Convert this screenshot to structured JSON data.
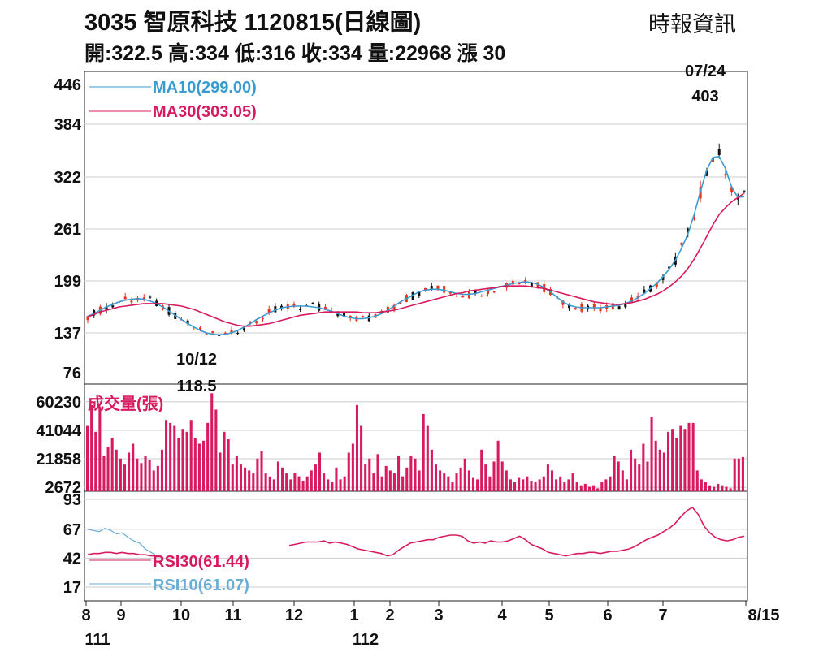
{
  "header": {
    "title": "3035  智原科技 1120815(日線圖)",
    "source": "時報資訊",
    "quote": "開:322.5 高:334 低:316 收:334 量:22968 漲 30"
  },
  "colors": {
    "up": "#e8341c",
    "down": "#111111",
    "ma10": "#3a9bd1",
    "ma30": "#d81b60",
    "volume": "#d81b60",
    "rsi30": "#d81b60",
    "rsi10": "#6aaed6",
    "grid": "#cccccc"
  },
  "chart_data": [
    {
      "type": "candlestick",
      "panel": "price",
      "y_ticks": [
        446,
        384,
        322,
        261,
        199,
        137,
        76
      ],
      "ylim": [
        76,
        446
      ],
      "series": [
        {
          "name": "MA10(299.00)",
          "values": [
            157,
            160,
            164,
            168,
            171,
            174,
            176,
            177,
            178,
            177,
            175,
            172,
            168,
            163,
            158,
            153,
            148,
            144,
            140,
            137,
            135,
            134,
            135,
            137,
            140,
            144,
            148,
            153,
            157,
            161,
            164,
            167,
            168,
            169,
            169,
            169,
            168,
            167,
            165,
            163,
            160,
            157,
            155,
            154,
            154,
            155,
            157,
            160,
            164,
            169,
            174,
            178,
            182,
            186,
            188,
            189,
            189,
            188,
            186,
            184,
            183,
            183,
            184,
            186,
            188,
            190,
            192,
            194,
            196,
            197,
            198,
            197,
            195,
            191,
            186,
            180,
            174,
            170,
            168,
            167,
            167,
            167,
            167,
            168,
            169,
            170,
            172,
            175,
            179,
            184,
            190,
            196,
            204,
            213,
            224,
            238,
            255,
            278,
            305,
            330,
            345,
            346,
            332,
            310,
            298,
            299
          ]
        },
        {
          "name": "MA30(303.05)",
          "values": [
            156,
            159,
            162,
            164,
            166,
            168,
            169,
            170,
            171,
            172,
            172,
            172,
            172,
            171,
            170,
            169,
            167,
            165,
            162,
            159,
            156,
            153,
            150,
            148,
            146,
            145,
            145,
            146,
            147,
            148,
            150,
            152,
            154,
            156,
            158,
            159,
            160,
            161,
            162,
            162,
            162,
            162,
            162,
            162,
            161,
            161,
            161,
            162,
            163,
            164,
            166,
            168,
            170,
            172,
            174,
            176,
            178,
            180,
            182,
            184,
            185,
            187,
            188,
            189,
            190,
            191,
            192,
            193,
            193,
            193,
            193,
            192,
            191,
            190,
            188,
            186,
            184,
            182,
            180,
            178,
            176,
            174,
            173,
            172,
            171,
            171,
            172,
            173,
            175,
            177,
            180,
            183,
            187,
            192,
            198,
            205,
            214,
            225,
            238,
            252,
            266,
            278,
            286,
            293,
            298,
            303
          ]
        }
      ],
      "annotations": [
        {
          "text": "07/24",
          "value": 403
        },
        {
          "text": "403"
        },
        {
          "text": "10/12",
          "value": 118.5
        },
        {
          "text": "118.5"
        }
      ]
    },
    {
      "type": "bar",
      "panel": "volume",
      "title": "成交量(張)",
      "y_ticks": [
        60230,
        41044,
        21858,
        2672
      ],
      "ylim": [
        0,
        70000
      ],
      "values": [
        44000,
        58000,
        40000,
        57000,
        24000,
        30000,
        36000,
        28000,
        22000,
        18000,
        26000,
        32000,
        22000,
        19000,
        24000,
        21000,
        14000,
        17000,
        28000,
        48000,
        46000,
        44000,
        36000,
        42000,
        40000,
        48000,
        36000,
        32000,
        34000,
        46000,
        66000,
        55000,
        26000,
        40000,
        35000,
        18000,
        24000,
        18000,
        16000,
        14000,
        12000,
        22000,
        27000,
        12000,
        10000,
        8000,
        20000,
        16000,
        12000,
        8000,
        12000,
        10000,
        7000,
        10000,
        14000,
        18000,
        26000,
        12000,
        8000,
        6000,
        16000,
        8000,
        10000,
        26000,
        32000,
        58000,
        44000,
        18000,
        22000,
        12000,
        25000,
        10000,
        17000,
        14000,
        12000,
        24000,
        10000,
        16000,
        24000,
        22000,
        14000,
        52000,
        44000,
        28000,
        18000,
        14000,
        12000,
        10000,
        6000,
        12000,
        16000,
        22000,
        14000,
        9000,
        8000,
        28000,
        18000,
        10000,
        20000,
        34000,
        20000,
        14000,
        8000,
        6000,
        9000,
        8000,
        10000,
        7000,
        6000,
        8000,
        10000,
        18000,
        14000,
        8000,
        10000,
        6000,
        8000,
        12000,
        6000,
        4000,
        5000,
        3000,
        4000,
        2000,
        6000,
        8000,
        10000,
        24000,
        20000,
        14000,
        8000,
        28000,
        22000,
        18000,
        32000,
        20000,
        50000,
        34000,
        28000,
        26000,
        40000,
        42000,
        36000,
        44000,
        42000,
        46000,
        46000,
        14000,
        8000,
        6000,
        4000,
        3000,
        5000,
        4000,
        3000,
        2000,
        22000,
        22000,
        23000
      ]
    },
    {
      "type": "line",
      "panel": "rsi",
      "y_ticks": [
        93,
        67,
        42,
        17
      ],
      "ylim": [
        5,
        100
      ],
      "series": [
        {
          "name": "RSI30(61.44)",
          "values": [
            45,
            46,
            46,
            47,
            47,
            46,
            47,
            46,
            46,
            45,
            45,
            44,
            44,
            null,
            null,
            null,
            null,
            null,
            null,
            null,
            null,
            null,
            null,
            null,
            null,
            null,
            null,
            null,
            null,
            null,
            null,
            null,
            null,
            null,
            null,
            53,
            54,
            55,
            56,
            56,
            56,
            57,
            55,
            56,
            55,
            54,
            52,
            50,
            49,
            48,
            47,
            46,
            44,
            45,
            49,
            52,
            55,
            56,
            57,
            58,
            58,
            60,
            61,
            62,
            62,
            61,
            57,
            55,
            56,
            55,
            57,
            56,
            56,
            57,
            59,
            61,
            58,
            54,
            52,
            50,
            47,
            46,
            45,
            44,
            45,
            46,
            46,
            47,
            47,
            46,
            47,
            48,
            48,
            49,
            50,
            52,
            55,
            58,
            60,
            62,
            65,
            68,
            72,
            78,
            83,
            86,
            80,
            70,
            64,
            60,
            58,
            57,
            58,
            60,
            61
          ]
        },
        {
          "name": "RSI10(61.07)",
          "values": [
            67,
            66,
            65,
            68,
            66,
            63,
            64,
            60,
            57,
            55,
            50,
            47,
            44,
            null,
            null,
            null,
            null,
            null,
            null,
            null,
            null,
            null,
            null,
            null,
            null,
            null,
            null,
            null,
            null,
            null,
            null,
            null,
            null,
            null,
            null,
            null,
            null,
            null,
            null,
            null,
            null,
            null,
            null,
            null,
            null,
            null,
            null,
            null,
            null,
            null,
            null,
            null,
            null,
            null,
            null,
            null,
            null,
            null,
            null,
            null,
            null,
            null,
            null,
            null,
            null,
            null,
            null,
            null,
            null,
            null,
            null,
            null,
            null,
            null,
            null,
            null,
            null,
            null,
            null,
            null,
            null,
            null,
            null,
            null,
            null,
            null,
            null,
            null,
            null,
            null,
            null,
            null,
            null,
            null,
            null,
            null,
            null,
            null,
            null,
            null,
            null,
            null,
            null,
            null,
            null,
            null,
            null,
            null,
            null,
            null,
            null,
            null,
            null,
            61
          ]
        }
      ]
    }
  ],
  "x_axis": {
    "month_labels": [
      "8",
      "9",
      "10",
      "11",
      "12",
      "1",
      "2",
      "3",
      "4",
      "5",
      "6",
      "7",
      "8/15"
    ],
    "year_labels": [
      "111",
      "112"
    ]
  }
}
